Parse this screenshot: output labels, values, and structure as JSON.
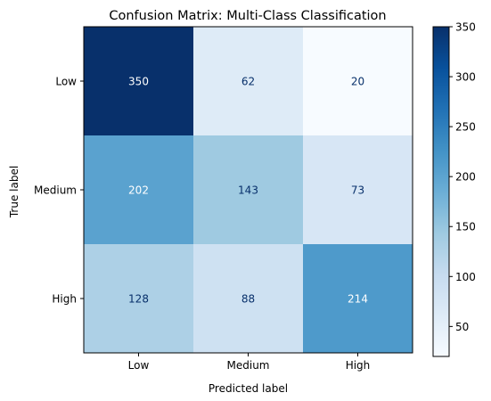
{
  "chart_data": {
    "type": "heatmap",
    "title": "Confusion Matrix: Multi-Class Classification",
    "xlabel": "Predicted label",
    "ylabel": "True label",
    "x_categories": [
      "Low",
      "Medium",
      "High"
    ],
    "y_categories": [
      "Low",
      "Medium",
      "High"
    ],
    "values": [
      [
        350,
        62,
        20
      ],
      [
        202,
        143,
        73
      ],
      [
        128,
        88,
        214
      ]
    ],
    "colormap": "Blues",
    "color_range": [
      20,
      350
    ],
    "colorbar_ticks": [
      50,
      100,
      150,
      200,
      250,
      300,
      350
    ],
    "grid": false
  }
}
